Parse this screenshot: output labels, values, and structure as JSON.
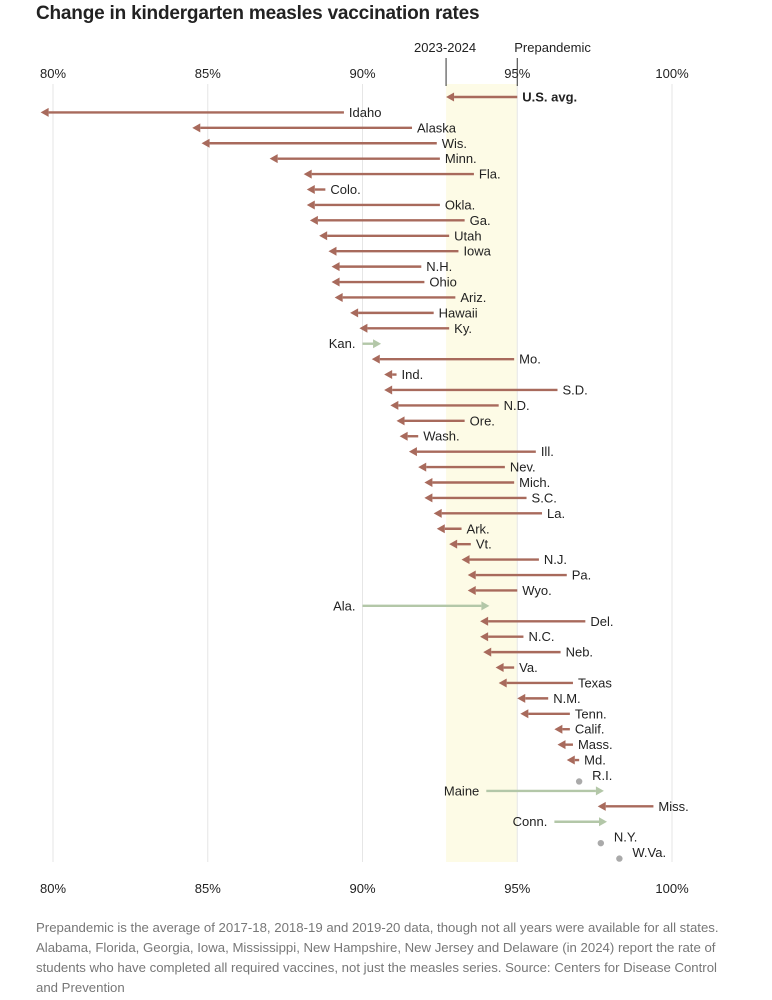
{
  "chart_data": {
    "type": "arrow",
    "title": "Change in kindergarten measles vaccination rates",
    "x_ticks": [
      "80%",
      "85%",
      "90%",
      "95%",
      "100%"
    ],
    "x_tick_values": [
      80,
      85,
      90,
      95,
      100
    ],
    "xlim": [
      80,
      100
    ],
    "band": {
      "start_label": "2023-2024",
      "end_label": "Prepandemic",
      "start": 92.7,
      "end": 95.0
    },
    "series": [
      {
        "points": [
          {
            "label": "U.S. avg.",
            "prepandemic": 95.0,
            "current": 92.7,
            "bold": true
          },
          {
            "label": "Idaho",
            "prepandemic": 89.4,
            "current": 79.6
          },
          {
            "label": "Alaska",
            "prepandemic": 91.6,
            "current": 84.5
          },
          {
            "label": "Wis.",
            "prepandemic": 92.4,
            "current": 84.8
          },
          {
            "label": "Minn.",
            "prepandemic": 92.5,
            "current": 87.0
          },
          {
            "label": "Fla.",
            "prepandemic": 93.6,
            "current": 88.1
          },
          {
            "label": "Colo.",
            "prepandemic": 88.8,
            "current": 88.2
          },
          {
            "label": "Okla.",
            "prepandemic": 92.5,
            "current": 88.2
          },
          {
            "label": "Ga.",
            "prepandemic": 93.3,
            "current": 88.3
          },
          {
            "label": "Utah",
            "prepandemic": 92.8,
            "current": 88.6
          },
          {
            "label": "Iowa",
            "prepandemic": 93.1,
            "current": 88.9
          },
          {
            "label": "N.H.",
            "prepandemic": 91.9,
            "current": 89.0
          },
          {
            "label": "Ohio",
            "prepandemic": 92.0,
            "current": 89.0
          },
          {
            "label": "Ariz.",
            "prepandemic": 93.0,
            "current": 89.1
          },
          {
            "label": "Hawaii",
            "prepandemic": 92.3,
            "current": 89.6
          },
          {
            "label": "Ky.",
            "prepandemic": 92.8,
            "current": 89.9
          },
          {
            "label": "Kan.",
            "prepandemic": 90.0,
            "current": 90.6
          },
          {
            "label": "Mo.",
            "prepandemic": 94.9,
            "current": 90.3
          },
          {
            "label": "Ind.",
            "prepandemic": 91.1,
            "current": 90.7
          },
          {
            "label": "S.D.",
            "prepandemic": 96.3,
            "current": 90.7
          },
          {
            "label": "N.D.",
            "prepandemic": 94.4,
            "current": 90.9
          },
          {
            "label": "Ore.",
            "prepandemic": 93.3,
            "current": 91.1
          },
          {
            "label": "Wash.",
            "prepandemic": 91.8,
            "current": 91.2
          },
          {
            "label": "Ill.",
            "prepandemic": 95.6,
            "current": 91.5
          },
          {
            "label": "Nev.",
            "prepandemic": 94.6,
            "current": 91.8
          },
          {
            "label": "Mich.",
            "prepandemic": 94.9,
            "current": 92.0
          },
          {
            "label": "S.C.",
            "prepandemic": 95.3,
            "current": 92.0
          },
          {
            "label": "La.",
            "prepandemic": 95.8,
            "current": 92.3
          },
          {
            "label": "Ark.",
            "prepandemic": 93.2,
            "current": 92.4
          },
          {
            "label": "Vt.",
            "prepandemic": 93.5,
            "current": 92.8
          },
          {
            "label": "N.J.",
            "prepandemic": 95.7,
            "current": 93.2
          },
          {
            "label": "Pa.",
            "prepandemic": 96.6,
            "current": 93.4
          },
          {
            "label": "Wyo.",
            "prepandemic": 95.0,
            "current": 93.4
          },
          {
            "label": "Ala.",
            "prepandemic": 90.0,
            "current": 94.1
          },
          {
            "label": "Del.",
            "prepandemic": 97.2,
            "current": 93.8
          },
          {
            "label": "N.C.",
            "prepandemic": 95.2,
            "current": 93.8
          },
          {
            "label": "Neb.",
            "prepandemic": 96.4,
            "current": 93.9
          },
          {
            "label": "Va.",
            "prepandemic": 94.9,
            "current": 94.3
          },
          {
            "label": "Texas",
            "prepandemic": 96.8,
            "current": 94.4
          },
          {
            "label": "N.M.",
            "prepandemic": 96.0,
            "current": 95.0
          },
          {
            "label": "Tenn.",
            "prepandemic": 96.7,
            "current": 95.1
          },
          {
            "label": "Calif.",
            "prepandemic": 96.7,
            "current": 96.2
          },
          {
            "label": "Mass.",
            "prepandemic": 96.8,
            "current": 96.3
          },
          {
            "label": "Md.",
            "prepandemic": 97.0,
            "current": 96.6
          },
          {
            "label": "R.I.",
            "prepandemic": 97.0,
            "current": 97.0
          },
          {
            "label": "Maine",
            "prepandemic": 94.0,
            "current": 97.8
          },
          {
            "label": "Miss.",
            "prepandemic": 99.4,
            "current": 97.6
          },
          {
            "label": "Conn.",
            "prepandemic": 96.2,
            "current": 97.9
          },
          {
            "label": "N.Y.",
            "prepandemic": 97.7,
            "current": 97.7
          },
          {
            "label": "W.Va.",
            "prepandemic": 98.3,
            "current": 98.3
          }
        ]
      }
    ]
  },
  "footnote": "Prepandemic is the average of 2017-18, 2018-19 and 2019-20 data, though not all years were available for all states. Alabama, Florida, Georgia, Iowa, Mississippi, New Hampshire, New Jersey and Delaware (in 2024) report the rate of students who have completed all required vaccines, not just the measles series. Source: Centers for Disease Control and Prevention",
  "colors": {
    "decrease": "#a86a5c",
    "increase": "#b3c7a8",
    "unchanged": "#aaaaaa",
    "band": "#fdfbe6",
    "grid": "#e6e6e6"
  }
}
